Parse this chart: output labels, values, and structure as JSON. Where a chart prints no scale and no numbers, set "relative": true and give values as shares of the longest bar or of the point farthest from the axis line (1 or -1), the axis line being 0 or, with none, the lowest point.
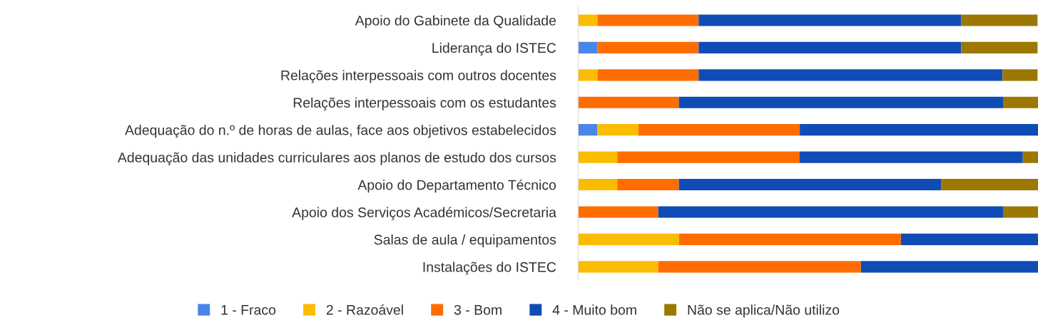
{
  "chart_data": {
    "type": "bar",
    "orientation": "horizontal",
    "stacked": true,
    "relative": true,
    "legend": "bottom",
    "grid": false,
    "categories": [
      "Apoio do Gabinete da Qualidade",
      "Liderança do ISTEC",
      "Relações interpessoais com outros docentes",
      "Relações interpessoais com os estudantes",
      "Adequação do n.º de horas de aulas, face aos objetivos estabelecidos",
      "Adequação das unidades curriculares aos planos de estudo dos cursos",
      "Apoio do Departamento Técnico",
      "Apoio dos Serviços Académicos/Secretaria",
      "Salas de aula / equipamentos",
      "Instalações do ISTEC"
    ],
    "series": [
      {
        "name": "1 - Fraco",
        "color": "#4a86e8",
        "values": [
          null,
          0.042,
          null,
          null,
          0.042,
          null,
          null,
          null,
          null,
          null
        ]
      },
      {
        "name": "2 - Razoável",
        "color": "#fbbc04",
        "values": [
          0.042,
          null,
          0.042,
          null,
          0.089,
          0.085,
          0.085,
          null,
          0.219,
          0.174
        ]
      },
      {
        "name": "3 - Bom",
        "color": "#ff6d01",
        "values": [
          0.22,
          0.22,
          0.22,
          0.219,
          0.351,
          0.396,
          0.134,
          0.174,
          0.483,
          0.441
        ]
      },
      {
        "name": "4 - Muito bom",
        "color": "#0f4cb5",
        "values": [
          0.571,
          0.571,
          0.661,
          0.705,
          0.518,
          0.486,
          0.571,
          0.75,
          0.298,
          0.385
        ]
      },
      {
        "name": "Não se aplica/Não utilizo",
        "color": "#9c7800",
        "values": [
          0.166,
          0.166,
          0.076,
          0.076,
          null,
          0.033,
          0.21,
          0.076,
          null,
          null
        ]
      }
    ]
  }
}
